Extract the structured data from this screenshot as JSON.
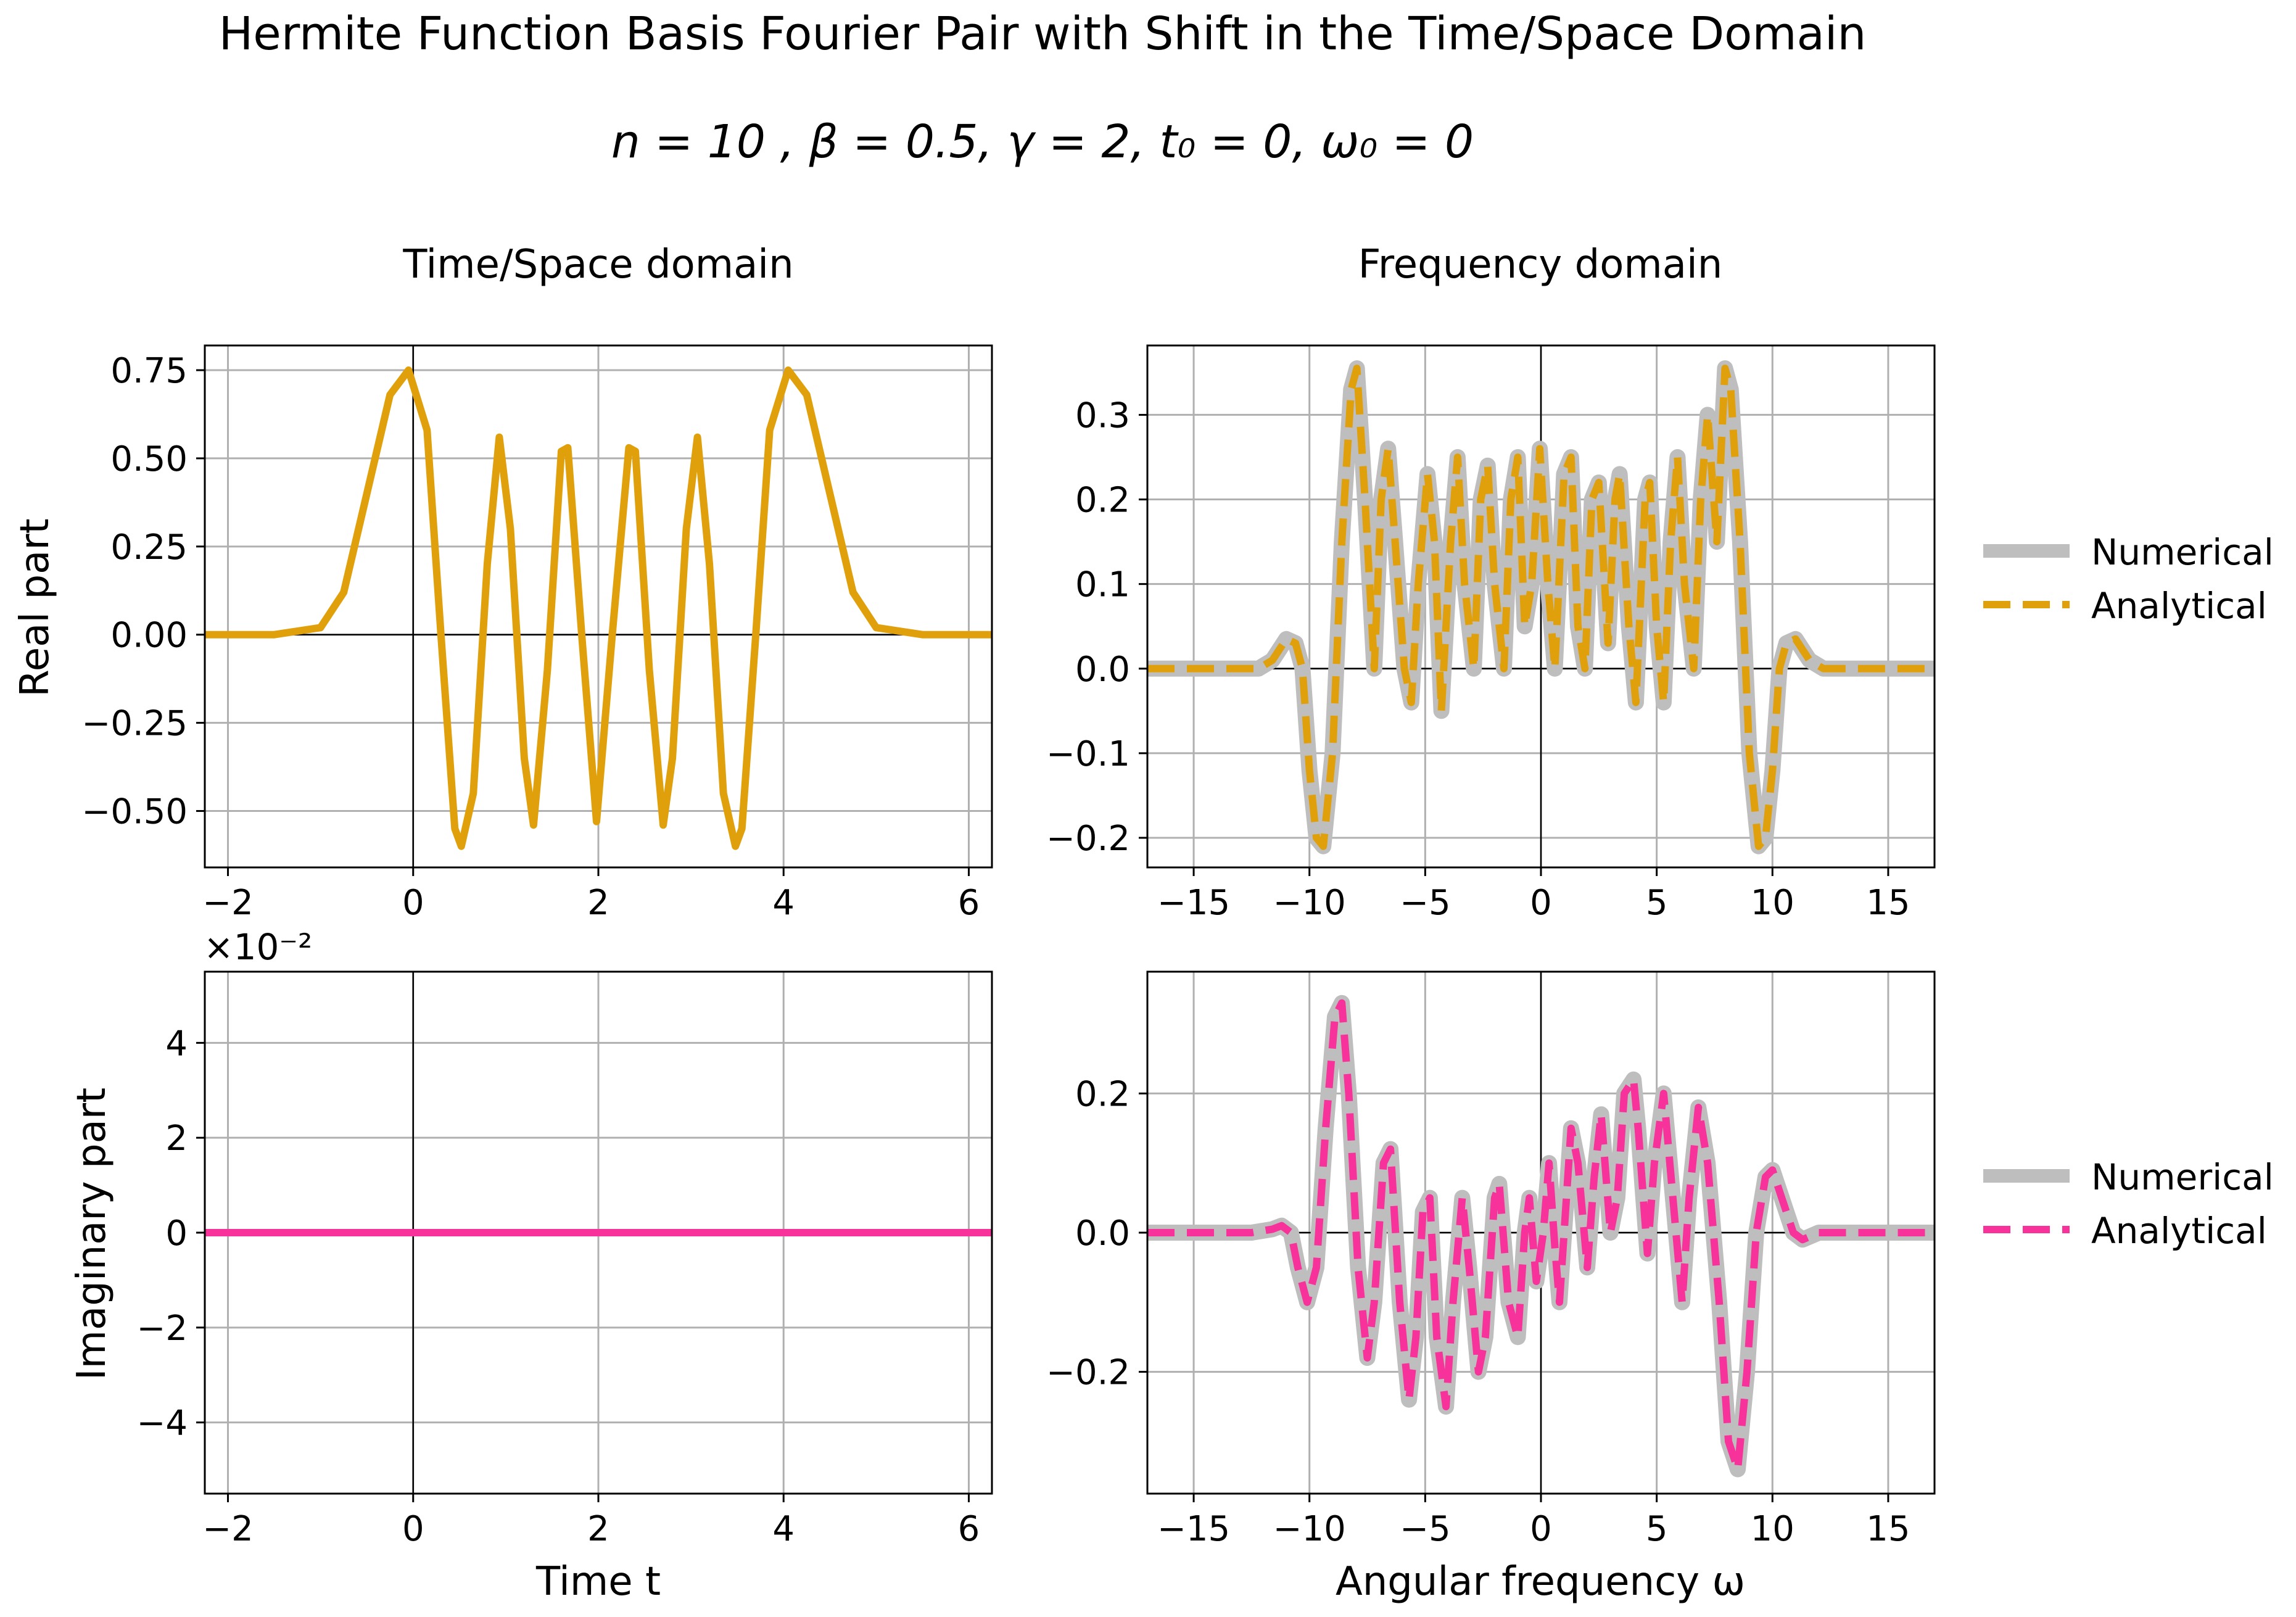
{
  "figure": {
    "title": "Hermite Function Basis Fourier Pair with Shift in the Time/Space Domain",
    "subtitle": "n = 10 , β = 0.5, γ = 2, t₀ = 0, ω₀ = 0",
    "col_left": "Time/Space domain",
    "col_right": "Frequency domain",
    "row_top_label": "Real part",
    "row_bottom_label": "Imaginary part",
    "xlabel_left": "Time t",
    "xlabel_right": "Angular frequency ω",
    "offset_text": "×10⁻²"
  },
  "legend": {
    "numerical": "Numerical",
    "analytical": "Analytical"
  },
  "colors": {
    "real": "#E0A00C",
    "imag": "#F7329A",
    "numerical": "#BEBEBE",
    "grid": "#B0B0B0",
    "zero_axis": "#000000"
  },
  "chart_data": [
    {
      "type": "line",
      "id": "time-real",
      "xlim": [
        -2.25,
        6.25
      ],
      "ylim": [
        -0.66,
        0.82
      ],
      "xticks": [
        -2,
        0,
        2,
        4,
        6
      ],
      "xtick_labels": [
        "−2",
        "0",
        "2",
        "4",
        "6"
      ],
      "yticks": [
        -0.5,
        -0.25,
        0.0,
        0.25,
        0.5,
        0.75
      ],
      "ytick_labels": [
        "−0.50",
        "−0.25",
        "0.00",
        "0.25",
        "0.50",
        "0.75"
      ],
      "grid": true,
      "series": [
        {
          "color": "#E0A00C",
          "points": [
            [
              -2.25,
              0
            ],
            [
              -1.5,
              0.0
            ],
            [
              -1.0,
              0.02
            ],
            [
              -0.75,
              0.12
            ],
            [
              -0.5,
              0.4
            ],
            [
              -0.25,
              0.68
            ],
            [
              -0.05,
              0.75
            ],
            [
              0.15,
              0.58
            ],
            [
              0.3,
              0.0
            ],
            [
              0.45,
              -0.55
            ],
            [
              0.52,
              -0.6
            ],
            [
              0.65,
              -0.45
            ],
            [
              0.8,
              0.2
            ],
            [
              0.93,
              0.56
            ],
            [
              1.05,
              0.3
            ],
            [
              1.2,
              -0.35
            ],
            [
              1.3,
              -0.54
            ],
            [
              1.45,
              -0.1
            ],
            [
              1.6,
              0.52
            ],
            [
              1.67,
              0.53
            ],
            [
              1.82,
              0.0
            ],
            [
              1.98,
              -0.53
            ],
            [
              2.15,
              0.0
            ],
            [
              2.33,
              0.53
            ],
            [
              2.4,
              0.52
            ],
            [
              2.55,
              -0.1
            ],
            [
              2.7,
              -0.54
            ],
            [
              2.8,
              -0.35
            ],
            [
              2.95,
              0.3
            ],
            [
              3.07,
              0.56
            ],
            [
              3.2,
              0.2
            ],
            [
              3.35,
              -0.45
            ],
            [
              3.48,
              -0.6
            ],
            [
              3.55,
              -0.55
            ],
            [
              3.7,
              0.0
            ],
            [
              3.85,
              0.58
            ],
            [
              4.05,
              0.75
            ],
            [
              4.25,
              0.68
            ],
            [
              4.5,
              0.4
            ],
            [
              4.75,
              0.12
            ],
            [
              5.0,
              0.02
            ],
            [
              5.5,
              0.0
            ],
            [
              6.25,
              0
            ]
          ]
        }
      ]
    },
    {
      "type": "line",
      "id": "freq-real",
      "xlim": [
        -17,
        17
      ],
      "ylim": [
        -0.235,
        0.382
      ],
      "xticks": [
        -15,
        -10,
        -5,
        0,
        5,
        10,
        15
      ],
      "xtick_labels": [
        "−15",
        "−10",
        "−5",
        "0",
        "5",
        "10",
        "15"
      ],
      "yticks": [
        -0.2,
        -0.1,
        0.0,
        0.1,
        0.2,
        0.3
      ],
      "ytick_labels": [
        "−0.2",
        "−0.1",
        "0.0",
        "0.1",
        "0.2",
        "0.3"
      ],
      "grid": true,
      "series": [
        {
          "name": "Numerical",
          "color": "#BEBEBE",
          "style": "solid"
        },
        {
          "name": "Analytical",
          "color": "#E0A00C",
          "style": "dashed"
        }
      ],
      "points": [
        [
          -17,
          0
        ],
        [
          -13,
          0
        ],
        [
          -12.2,
          0.0
        ],
        [
          -11.6,
          0.01
        ],
        [
          -11.0,
          0.035
        ],
        [
          -10.6,
          0.03
        ],
        [
          -10.3,
          0.0
        ],
        [
          -10.0,
          -0.12
        ],
        [
          -9.7,
          -0.2
        ],
        [
          -9.4,
          -0.21
        ],
        [
          -9.0,
          -0.1
        ],
        [
          -8.6,
          0.15
        ],
        [
          -8.2,
          0.33
        ],
        [
          -7.95,
          0.355
        ],
        [
          -7.6,
          0.2
        ],
        [
          -7.2,
          0.0
        ],
        [
          -6.9,
          0.2
        ],
        [
          -6.6,
          0.26
        ],
        [
          -6.3,
          0.15
        ],
        [
          -5.9,
          0.0
        ],
        [
          -5.6,
          -0.04
        ],
        [
          -5.3,
          0.1
        ],
        [
          -4.9,
          0.23
        ],
        [
          -4.6,
          0.15
        ],
        [
          -4.3,
          -0.05
        ],
        [
          -3.9,
          0.15
        ],
        [
          -3.6,
          0.25
        ],
        [
          -3.3,
          0.1
        ],
        [
          -2.9,
          0.0
        ],
        [
          -2.6,
          0.2
        ],
        [
          -2.3,
          0.24
        ],
        [
          -2.0,
          0.1
        ],
        [
          -1.6,
          0.0
        ],
        [
          -1.3,
          0.2
        ],
        [
          -1.0,
          0.25
        ],
        [
          -0.7,
          0.05
        ],
        [
          -0.4,
          0.1
        ],
        [
          -0.05,
          0.26
        ],
        [
          0.3,
          0.1
        ],
        [
          0.6,
          0.0
        ],
        [
          1.0,
          0.23
        ],
        [
          1.3,
          0.25
        ],
        [
          1.6,
          0.05
        ],
        [
          1.9,
          0.0
        ],
        [
          2.2,
          0.2
        ],
        [
          2.5,
          0.22
        ],
        [
          2.9,
          0.03
        ],
        [
          3.2,
          0.2
        ],
        [
          3.4,
          0.23
        ],
        [
          3.8,
          0.05
        ],
        [
          4.1,
          -0.04
        ],
        [
          4.5,
          0.2
        ],
        [
          4.7,
          0.22
        ],
        [
          5.0,
          0.05
        ],
        [
          5.3,
          -0.04
        ],
        [
          5.6,
          0.15
        ],
        [
          5.9,
          0.25
        ],
        [
          6.2,
          0.1
        ],
        [
          6.6,
          0.0
        ],
        [
          6.9,
          0.2
        ],
        [
          7.2,
          0.3
        ],
        [
          7.6,
          0.15
        ],
        [
          7.95,
          0.355
        ],
        [
          8.2,
          0.33
        ],
        [
          8.6,
          0.15
        ],
        [
          9.0,
          -0.1
        ],
        [
          9.4,
          -0.21
        ],
        [
          9.7,
          -0.2
        ],
        [
          10.0,
          -0.12
        ],
        [
          10.3,
          0.0
        ],
        [
          10.6,
          0.03
        ],
        [
          11.0,
          0.035
        ],
        [
          11.6,
          0.01
        ],
        [
          12.2,
          0.0
        ],
        [
          13,
          0
        ],
        [
          17,
          0
        ]
      ]
    },
    {
      "type": "line",
      "id": "time-imag",
      "xlim": [
        -2.25,
        6.25
      ],
      "ylim": [
        -5.5,
        5.5
      ],
      "xticks": [
        -2,
        0,
        2,
        4,
        6
      ],
      "xtick_labels": [
        "−2",
        "0",
        "2",
        "4",
        "6"
      ],
      "yticks": [
        -4,
        -2,
        0,
        2,
        4
      ],
      "ytick_labels": [
        "−4",
        "−2",
        "0",
        "2",
        "4"
      ],
      "grid": true,
      "series": [
        {
          "color": "#F7329A",
          "points": [
            [
              -2.25,
              0
            ],
            [
              6.25,
              0
            ]
          ]
        }
      ]
    },
    {
      "type": "line",
      "id": "freq-imag",
      "xlim": [
        -17,
        17
      ],
      "ylim": [
        -0.375,
        0.375
      ],
      "xticks": [
        -15,
        -10,
        -5,
        0,
        5,
        10,
        15
      ],
      "xtick_labels": [
        "−15",
        "−10",
        "−5",
        "0",
        "5",
        "10",
        "15"
      ],
      "yticks": [
        -0.2,
        0.0,
        0.2
      ],
      "ytick_labels": [
        "−0.2",
        "0.0",
        "0.2"
      ],
      "grid": true,
      "series": [
        {
          "name": "Numerical",
          "color": "#BEBEBE",
          "style": "solid"
        },
        {
          "name": "Analytical",
          "color": "#F7329A",
          "style": "dashed"
        }
      ],
      "points": [
        [
          -17,
          0
        ],
        [
          -12.5,
          0
        ],
        [
          -11.6,
          0.005
        ],
        [
          -11.2,
          0.01
        ],
        [
          -10.8,
          0.0
        ],
        [
          -10.5,
          -0.05
        ],
        [
          -10.1,
          -0.1
        ],
        [
          -9.7,
          -0.05
        ],
        [
          -9.3,
          0.15
        ],
        [
          -8.9,
          0.31
        ],
        [
          -8.6,
          0.33
        ],
        [
          -8.3,
          0.2
        ],
        [
          -7.9,
          -0.05
        ],
        [
          -7.5,
          -0.18
        ],
        [
          -7.2,
          -0.1
        ],
        [
          -6.8,
          0.1
        ],
        [
          -6.5,
          0.12
        ],
        [
          -6.1,
          -0.1
        ],
        [
          -5.7,
          -0.24
        ],
        [
          -5.4,
          -0.15
        ],
        [
          -5.1,
          0.03
        ],
        [
          -4.8,
          0.05
        ],
        [
          -4.5,
          -0.15
        ],
        [
          -4.1,
          -0.25
        ],
        [
          -3.8,
          -0.1
        ],
        [
          -3.4,
          0.05
        ],
        [
          -3.1,
          -0.05
        ],
        [
          -2.7,
          -0.2
        ],
        [
          -2.4,
          -0.15
        ],
        [
          -2.0,
          0.05
        ],
        [
          -1.8,
          0.07
        ],
        [
          -1.4,
          -0.1
        ],
        [
          -1.0,
          -0.15
        ],
        [
          -0.7,
          0.0
        ],
        [
          -0.5,
          0.05
        ],
        [
          -0.2,
          -0.07
        ],
        [
          0.1,
          0.0
        ],
        [
          0.35,
          0.1
        ],
        [
          0.6,
          -0.02
        ],
        [
          0.8,
          -0.1
        ],
        [
          1.1,
          0.05
        ],
        [
          1.3,
          0.15
        ],
        [
          1.6,
          0.1
        ],
        [
          2.0,
          -0.05
        ],
        [
          2.3,
          0.08
        ],
        [
          2.6,
          0.17
        ],
        [
          3.0,
          0.0
        ],
        [
          3.3,
          0.05
        ],
        [
          3.6,
          0.2
        ],
        [
          4.0,
          0.22
        ],
        [
          4.2,
          0.15
        ],
        [
          4.6,
          -0.03
        ],
        [
          4.9,
          0.1
        ],
        [
          5.3,
          0.2
        ],
        [
          5.7,
          0.05
        ],
        [
          6.1,
          -0.1
        ],
        [
          6.4,
          0.05
        ],
        [
          6.8,
          0.18
        ],
        [
          7.2,
          0.1
        ],
        [
          7.7,
          -0.1
        ],
        [
          8.1,
          -0.3
        ],
        [
          8.5,
          -0.34
        ],
        [
          8.9,
          -0.2
        ],
        [
          9.3,
          0.0
        ],
        [
          9.7,
          0.08
        ],
        [
          10.0,
          0.09
        ],
        [
          10.4,
          0.05
        ],
        [
          10.9,
          0.0
        ],
        [
          11.3,
          -0.01
        ],
        [
          12,
          0
        ],
        [
          17,
          0
        ]
      ]
    }
  ]
}
